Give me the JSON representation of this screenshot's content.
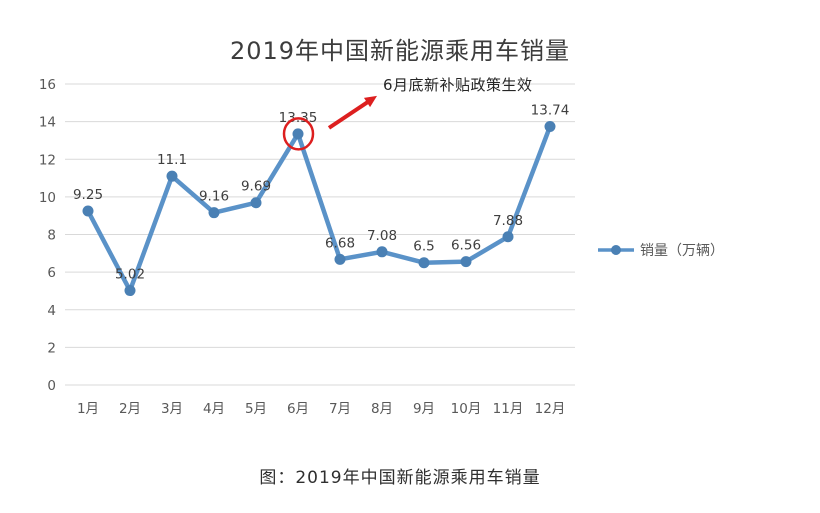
{
  "title": "2019年中国新能源乘用车销量",
  "caption": "图：2019年中国新能源乘用车销量",
  "annotation": {
    "text": "6月底新补贴政策生效"
  },
  "legend": {
    "label": "销量（万辆）"
  },
  "colors": {
    "background": "#ffffff",
    "line": "#5a92c8",
    "marker": "#4a80b4",
    "grid": "#d9d9d9",
    "axis_text": "#595959",
    "data_label_text": "#3f3f3f",
    "title_text": "#3d3d3d",
    "caption_text": "#2f2f2f",
    "annotation_text": "#262626",
    "highlight_red": "#dd1f1f"
  },
  "chart_data": {
    "type": "line",
    "title": "2019年中国新能源乘用车销量",
    "categories": [
      "1月",
      "2月",
      "3月",
      "4月",
      "5月",
      "6月",
      "7月",
      "8月",
      "9月",
      "10月",
      "11月",
      "12月"
    ],
    "series": [
      {
        "name": "销量（万辆）",
        "values": [
          9.25,
          5.02,
          11.1,
          9.16,
          9.69,
          13.35,
          6.68,
          7.08,
          6.5,
          6.56,
          7.88,
          13.74
        ]
      }
    ],
    "xlabel": "",
    "ylabel": "",
    "ylim": [
      0,
      16
    ],
    "ytick_step": 2,
    "grid": true,
    "legend_position": "right",
    "data_labels": true,
    "annotations": [
      {
        "text": "6月底新补贴政策生效",
        "target_category": "6月",
        "target_value": 13.35,
        "style": "red-circle-and-arrow"
      }
    ]
  }
}
